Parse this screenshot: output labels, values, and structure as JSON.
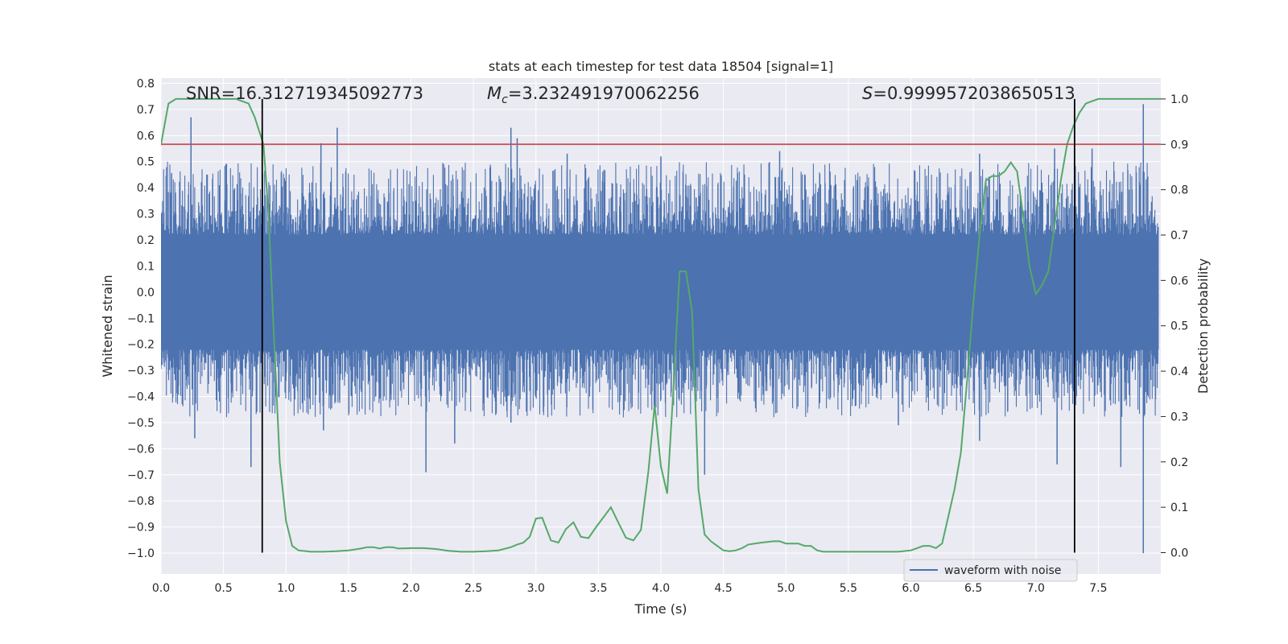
{
  "chart_data": {
    "type": "line",
    "title": "stats at each timestep for test data 18504 [signal=1]",
    "xlabel": "Time (s)",
    "ylabel_left": "Whitened strain",
    "ylabel_right": "Detection probability",
    "xlim": [
      0.0,
      8.0
    ],
    "ylim_left": [
      -1.08,
      0.82
    ],
    "ylim_right": [
      -0.047,
      1.046
    ],
    "x_ticks": [
      "0.0",
      "0.5",
      "1.0",
      "1.5",
      "2.0",
      "2.5",
      "3.0",
      "3.5",
      "4.0",
      "4.5",
      "5.0",
      "5.5",
      "6.0",
      "6.5",
      "7.0",
      "7.5"
    ],
    "x_tick_values": [
      0.0,
      0.5,
      1.0,
      1.5,
      2.0,
      2.5,
      3.0,
      3.5,
      4.0,
      4.5,
      5.0,
      5.5,
      6.0,
      6.5,
      7.0,
      7.5
    ],
    "y_left_ticks": [
      "0.8",
      "0.7",
      "0.6",
      "0.5",
      "0.4",
      "0.3",
      "0.2",
      "0.1",
      "0.0",
      "−0.1",
      "−0.2",
      "−0.3",
      "−0.4",
      "−0.5",
      "−0.6",
      "−0.7",
      "−0.8",
      "−0.9",
      "−1.0"
    ],
    "y_left_tick_values": [
      0.8,
      0.7,
      0.6,
      0.5,
      0.4,
      0.3,
      0.2,
      0.1,
      0.0,
      -0.1,
      -0.2,
      -0.3,
      -0.4,
      -0.5,
      -0.6,
      -0.7,
      -0.8,
      -0.9,
      -1.0
    ],
    "y_right_ticks": [
      "1.0",
      "0.9",
      "0.8",
      "0.7",
      "0.6",
      "0.5",
      "0.4",
      "0.3",
      "0.2",
      "0.1",
      "0.0"
    ],
    "y_right_tick_values": [
      1.0,
      0.9,
      0.8,
      0.7,
      0.6,
      0.5,
      0.4,
      0.3,
      0.2,
      0.1,
      0.0
    ],
    "grid": true,
    "legend": {
      "position": "lower-right",
      "entries": [
        "waveform with noise"
      ]
    },
    "annotations": {
      "snr": "SNR=16.312719345092773",
      "mc_prefix": "M",
      "mc_sub": "c",
      "mc_value": "=3.232491970062256",
      "s_prefix": "S",
      "s_value": "=0.9999572038650513"
    },
    "threshold": 0.9,
    "vlines": [
      0.81,
      7.31
    ],
    "waveform": {
      "name": "waveform with noise",
      "color": "#4c72b0",
      "spikes_high": [
        [
          0.24,
          0.67
        ],
        [
          0.52,
          0.49
        ],
        [
          1.28,
          0.57
        ],
        [
          1.41,
          0.63
        ],
        [
          2.8,
          0.63
        ],
        [
          2.85,
          0.59
        ],
        [
          3.25,
          0.53
        ],
        [
          4.0,
          0.52
        ],
        [
          4.95,
          0.54
        ],
        [
          6.55,
          0.53
        ],
        [
          7.15,
          0.55
        ],
        [
          7.45,
          0.55
        ],
        [
          7.86,
          0.72
        ]
      ],
      "spikes_low": [
        [
          0.27,
          -0.56
        ],
        [
          0.72,
          -0.67
        ],
        [
          1.3,
          -0.53
        ],
        [
          2.12,
          -0.69
        ],
        [
          2.35,
          -0.58
        ],
        [
          2.8,
          -0.5
        ],
        [
          4.35,
          -0.7
        ],
        [
          5.9,
          -0.51
        ],
        [
          6.55,
          -0.57
        ],
        [
          7.17,
          -0.66
        ],
        [
          7.68,
          -0.67
        ],
        [
          7.86,
          -1.0
        ]
      ]
    },
    "probability": {
      "color": "#55a868",
      "x": [
        0.0,
        0.06,
        0.12,
        0.2,
        0.3,
        0.45,
        0.6,
        0.7,
        0.75,
        0.82,
        0.86,
        0.9,
        0.95,
        1.0,
        1.05,
        1.1,
        1.2,
        1.3,
        1.4,
        1.5,
        1.55,
        1.6,
        1.65,
        1.7,
        1.75,
        1.8,
        1.85,
        1.9,
        2.0,
        2.1,
        2.2,
        2.3,
        2.4,
        2.5,
        2.6,
        2.7,
        2.8,
        2.85,
        2.9,
        2.95,
        3.0,
        3.05,
        3.12,
        3.18,
        3.24,
        3.3,
        3.36,
        3.42,
        3.48,
        3.54,
        3.6,
        3.66,
        3.72,
        3.78,
        3.84,
        3.9,
        3.95,
        4.0,
        4.05,
        4.1,
        4.15,
        4.2,
        4.25,
        4.3,
        4.35,
        4.4,
        4.45,
        4.5,
        4.55,
        4.6,
        4.65,
        4.7,
        4.8,
        4.9,
        4.95,
        5.0,
        5.05,
        5.1,
        5.15,
        5.2,
        5.25,
        5.3,
        5.4,
        5.5,
        5.6,
        5.7,
        5.8,
        5.9,
        6.0,
        6.05,
        6.1,
        6.15,
        6.2,
        6.25,
        6.3,
        6.35,
        6.4,
        6.45,
        6.5,
        6.55,
        6.6,
        6.65,
        6.7,
        6.75,
        6.8,
        6.85,
        6.9,
        6.95,
        7.0,
        7.05,
        7.1,
        7.15,
        7.2,
        7.25,
        7.3,
        7.35,
        7.4,
        7.45,
        7.5,
        7.55,
        7.6,
        7.7,
        7.8,
        7.9,
        8.0
      ],
      "y": [
        0.9,
        0.99,
        1.0,
        1.0,
        1.0,
        1.0,
        1.0,
        0.99,
        0.96,
        0.9,
        0.75,
        0.5,
        0.2,
        0.07,
        0.015,
        0.005,
        0.002,
        0.002,
        0.003,
        0.005,
        0.007,
        0.009,
        0.012,
        0.012,
        0.009,
        0.012,
        0.012,
        0.009,
        0.01,
        0.01,
        0.008,
        0.004,
        0.002,
        0.002,
        0.003,
        0.005,
        0.012,
        0.018,
        0.022,
        0.035,
        0.075,
        0.077,
        0.027,
        0.022,
        0.052,
        0.067,
        0.035,
        0.032,
        0.056,
        0.078,
        0.1,
        0.066,
        0.033,
        0.027,
        0.05,
        0.18,
        0.325,
        0.19,
        0.13,
        0.36,
        0.62,
        0.62,
        0.53,
        0.14,
        0.04,
        0.025,
        0.015,
        0.005,
        0.003,
        0.005,
        0.01,
        0.018,
        0.022,
        0.025,
        0.025,
        0.02,
        0.02,
        0.02,
        0.015,
        0.015,
        0.005,
        0.002,
        0.002,
        0.002,
        0.002,
        0.002,
        0.002,
        0.002,
        0.005,
        0.01,
        0.015,
        0.015,
        0.01,
        0.02,
        0.08,
        0.14,
        0.22,
        0.38,
        0.55,
        0.7,
        0.82,
        0.83,
        0.83,
        0.84,
        0.86,
        0.84,
        0.74,
        0.63,
        0.57,
        0.59,
        0.62,
        0.72,
        0.82,
        0.9,
        0.94,
        0.97,
        0.99,
        0.995,
        1.0,
        1.0,
        1.0,
        1.0,
        1.0,
        1.0,
        1.0
      ]
    },
    "colors": {
      "background": "#eaeaf2",
      "grid": "#ffffff",
      "threshold": "#c44e52",
      "vline": "#000000",
      "waveform": "#4c72b0",
      "probability": "#55a868"
    }
  }
}
